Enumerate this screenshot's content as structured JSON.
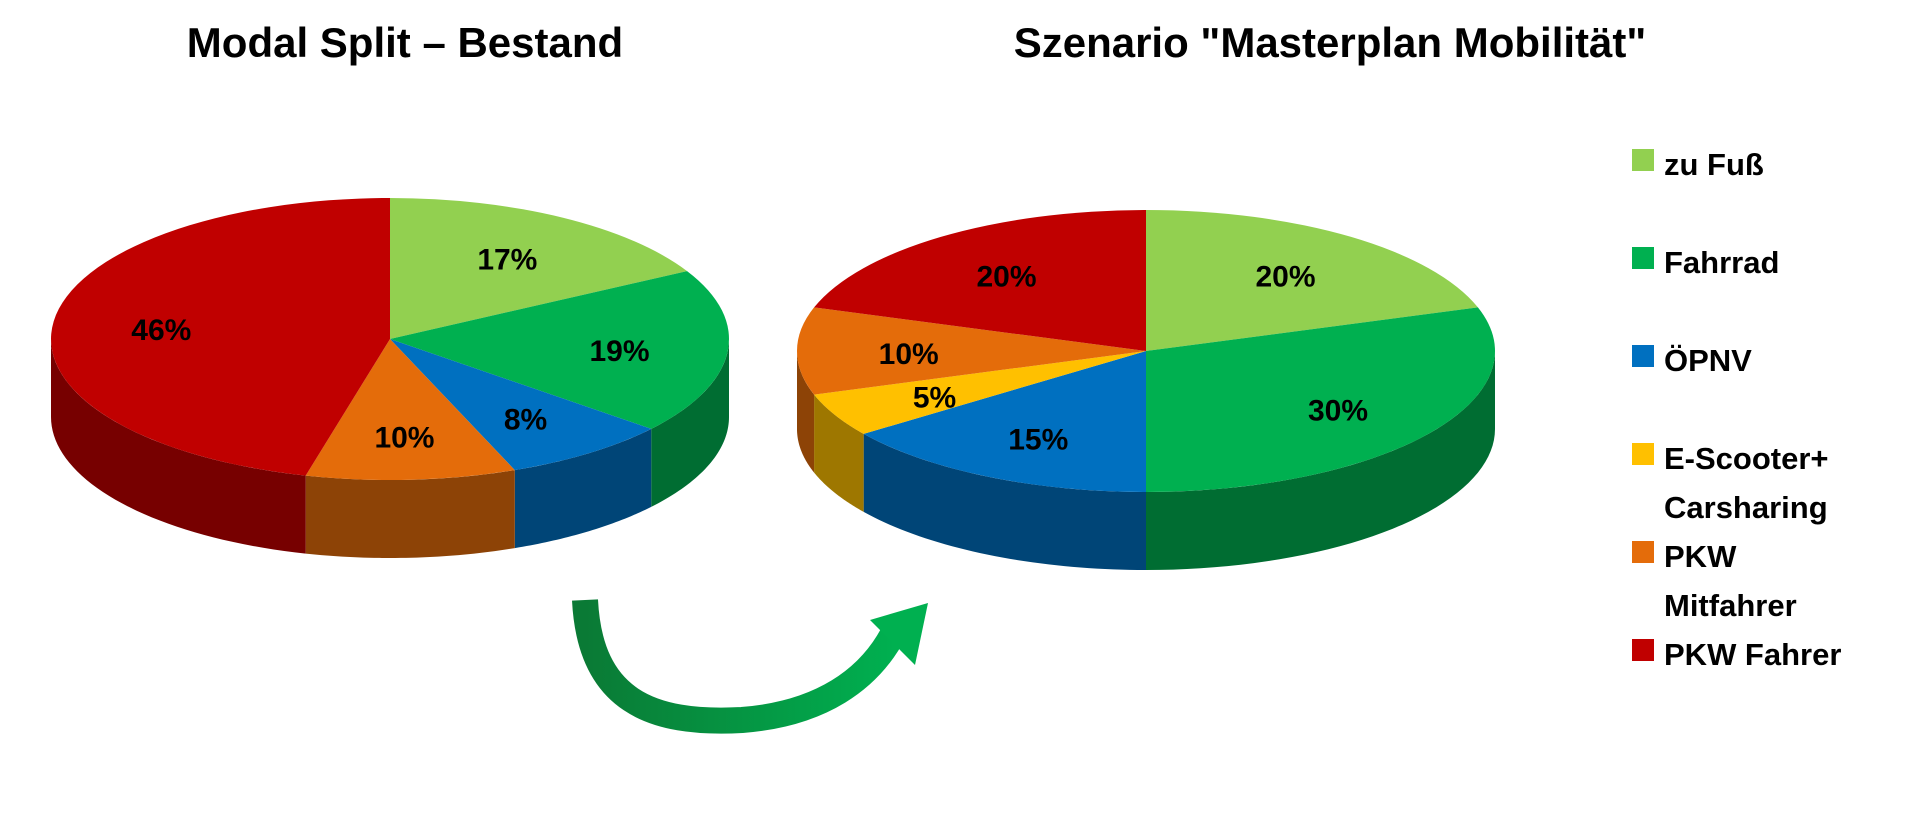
{
  "chart_data": [
    {
      "type": "pie",
      "title": "Modal Split – Bestand",
      "values": [
        17,
        19,
        8,
        null,
        10,
        46
      ],
      "value_labels": [
        "17%",
        "19%",
        "8%",
        null,
        "10%",
        "46%"
      ]
    },
    {
      "type": "pie",
      "title": "Szenario \"Masterplan Mobilität\"",
      "values": [
        20,
        30,
        15,
        5,
        10,
        20
      ],
      "value_labels": [
        "20%",
        "30%",
        "15%",
        "5%",
        "10%",
        "20%"
      ]
    }
  ],
  "legend": {
    "categories": [
      "zu Fuß",
      "Fahrrad",
      "ÖPNV",
      "E-Scooter+ Carsharing",
      "PKW Mitfahrer",
      "PKW Fahrer"
    ],
    "colors": [
      "#92d050",
      "#00b050",
      "#0070c0",
      "#ffc000",
      "#e46c0a",
      "#c00000"
    ],
    "position": "right"
  }
}
